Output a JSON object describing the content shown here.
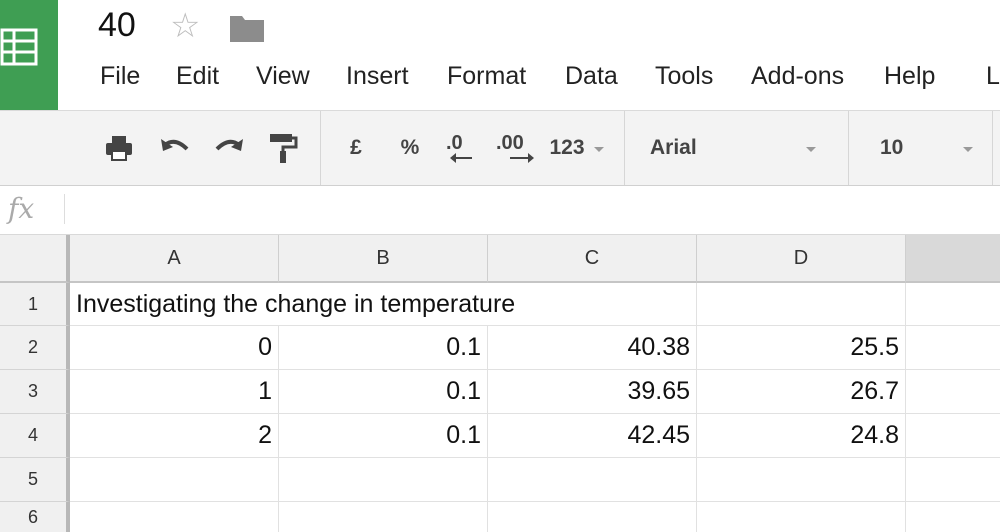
{
  "app": {
    "title": "40",
    "star_icon": "star-outline-icon",
    "folder_icon": "folder-icon",
    "brand_color": "#3f9e53"
  },
  "menu": [
    "File",
    "Edit",
    "View",
    "Insert",
    "Format",
    "Data",
    "Tools",
    "Add-ons",
    "Help",
    "L"
  ],
  "toolbar": {
    "icons": [
      "print-icon",
      "undo-icon",
      "redo-icon",
      "paint-format-icon"
    ],
    "currency_label": "£",
    "percent_label": "%",
    "decrease_decimal_label": ".0",
    "increase_decimal_label": ".00",
    "number_format_label": "123",
    "font_name": "Arial",
    "font_size": "10"
  },
  "formula_bar": {
    "fx_label": "fx",
    "value": ""
  },
  "sheet": {
    "columns": [
      "A",
      "B",
      "C",
      "D"
    ],
    "rows": [
      "1",
      "2",
      "3",
      "4",
      "5",
      "6"
    ],
    "cells": [
      [
        "Investigating the change in temperature",
        "",
        "",
        ""
      ],
      [
        "0",
        "0.1",
        "40.38",
        "25.5"
      ],
      [
        "1",
        "0.1",
        "39.65",
        "26.7"
      ],
      [
        "2",
        "0.1",
        "42.45",
        "24.8"
      ],
      [
        "",
        "",
        "",
        ""
      ],
      [
        "",
        "",
        "",
        ""
      ]
    ]
  }
}
